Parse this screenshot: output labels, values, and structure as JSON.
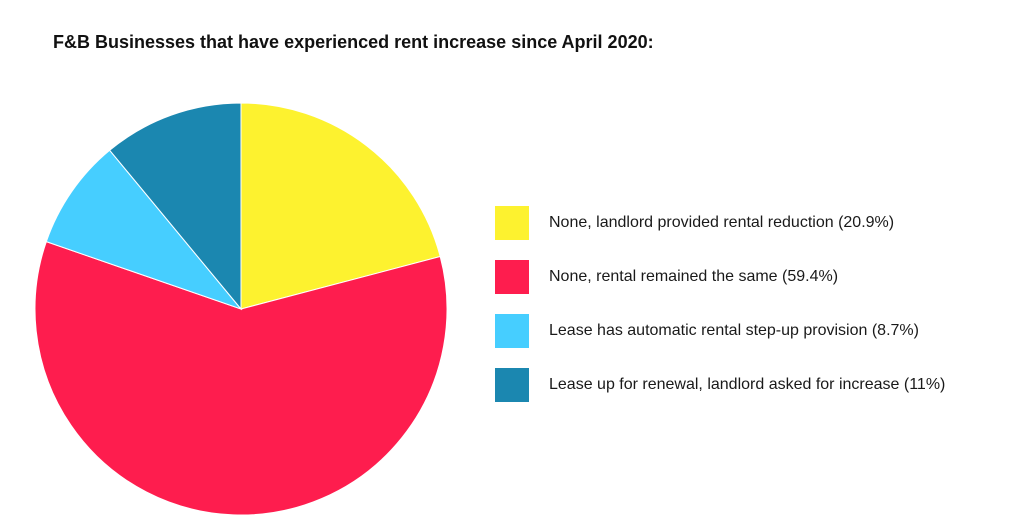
{
  "chart_data": {
    "type": "pie",
    "title": "F&B Businesses that have experienced rent increase since April 2020:",
    "start_angle_deg": 0,
    "direction": "clockwise",
    "legend_position": "right",
    "slices": [
      {
        "label": "None, landlord provided rental reduction (20.9%)",
        "value": 20.9,
        "color": "#FDF22F"
      },
      {
        "label": "None, rental remained the same (59.4%)",
        "value": 59.4,
        "color": "#FE1D4E"
      },
      {
        "label": "Lease has automatic rental step-up provision (8.7%)",
        "value": 8.7,
        "color": "#46CEFF"
      },
      {
        "label": "Lease up for renewal, landlord asked for increase (11%)",
        "value": 11,
        "color": "#1B87B0"
      }
    ]
  }
}
